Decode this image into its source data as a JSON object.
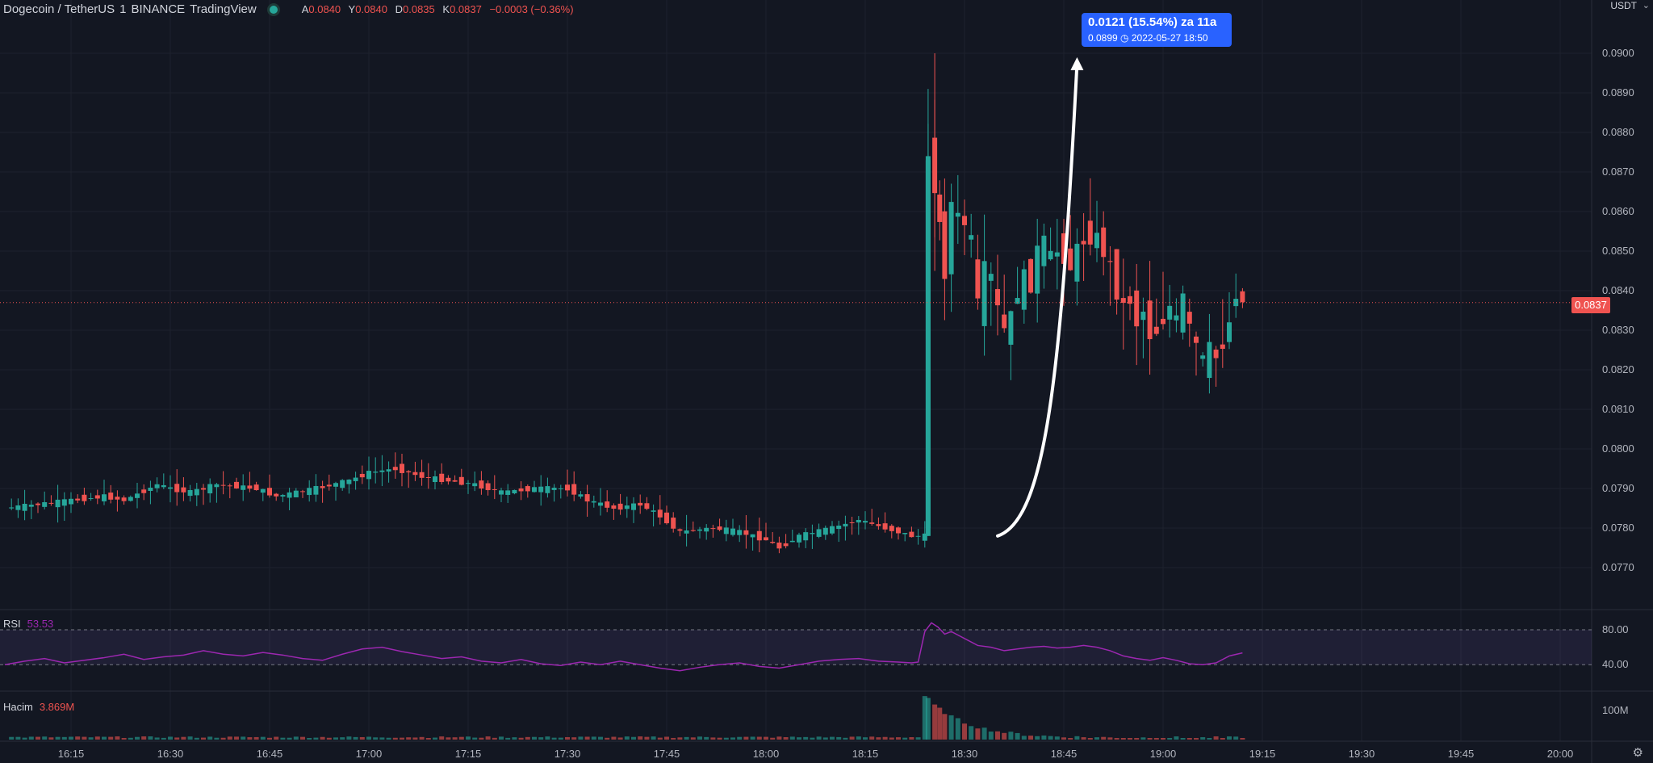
{
  "legend": {
    "symbol": "Dogecoin / TetherUS",
    "interval": "1",
    "exchange": "BINANCE",
    "source": "TradingView",
    "open_label": "A",
    "open": "0.0840",
    "high_label": "Y",
    "high": "0.0840",
    "low_label": "D",
    "low": "0.0835",
    "close_label": "K",
    "close": "0.0837",
    "change": "−0.0003 (−0.36%)"
  },
  "axis_unit": "USDT",
  "last_price": "0.0837",
  "measure": {
    "line1": "0.0121 (15.54%) za 11a",
    "line2": "0.0899 ◷ 2022-05-27  18:50"
  },
  "rsi": {
    "label": "RSI",
    "value": "53.53",
    "upper": "80.00",
    "lower": "40.00"
  },
  "volume": {
    "label": "Hacim",
    "value": "3.869M",
    "tick": "100M"
  },
  "colors": {
    "up": "#26a69a",
    "down": "#ef5350",
    "rsi": "#9c27b0",
    "bg": "#131722",
    "measure": "#2962ff"
  },
  "chart_data": {
    "type": "candlestick",
    "unit": "USDT",
    "price_ticks": [
      "0.0770",
      "0.0780",
      "0.0790",
      "0.0800",
      "0.0810",
      "0.0820",
      "0.0830",
      "0.0840",
      "0.0850",
      "0.0860",
      "0.0870",
      "0.0880",
      "0.0890",
      "0.0900"
    ],
    "time_ticks": [
      {
        "label": "16:15",
        "minute": 975
      },
      {
        "label": "16:30",
        "minute": 990
      },
      {
        "label": "16:45",
        "minute": 1005
      },
      {
        "label": "17:00",
        "minute": 1020
      },
      {
        "label": "17:15",
        "minute": 1035
      },
      {
        "label": "17:30",
        "minute": 1050
      },
      {
        "label": "17:45",
        "minute": 1065
      },
      {
        "label": "18:00",
        "minute": 1080
      },
      {
        "label": "18:15",
        "minute": 1095
      },
      {
        "label": "18:30",
        "minute": 1110
      },
      {
        "label": "18:45",
        "minute": 1125
      },
      {
        "label": "19:00",
        "minute": 1140
      },
      {
        "label": "19:15",
        "minute": 1155
      },
      {
        "label": "19:30",
        "minute": 1170
      },
      {
        "label": "19:45",
        "minute": 1185
      },
      {
        "label": "20:00",
        "minute": 1200
      }
    ],
    "close_path": [
      [
        965.0,
        0.0785
      ],
      [
        970.0,
        0.0786
      ],
      [
        975.0,
        0.0787
      ],
      [
        980.0,
        0.0788
      ],
      [
        983.0,
        0.0787
      ],
      [
        988.0,
        0.0791
      ],
      [
        990.0,
        0.079
      ],
      [
        993.0,
        0.0789
      ],
      [
        997.0,
        0.0791
      ],
      [
        1003.0,
        0.079
      ],
      [
        1006.0,
        0.0788
      ],
      [
        1012.0,
        0.079
      ],
      [
        1017.0,
        0.0792
      ],
      [
        1020.0,
        0.0794
      ],
      [
        1024.0,
        0.0795
      ],
      [
        1028.0,
        0.0793
      ],
      [
        1032.0,
        0.0792
      ],
      [
        1036.0,
        0.0791
      ],
      [
        1040.0,
        0.0789
      ],
      [
        1045.0,
        0.079
      ],
      [
        1050.0,
        0.079
      ],
      [
        1053.0,
        0.0787
      ],
      [
        1057.0,
        0.0785
      ],
      [
        1061.0,
        0.0786
      ],
      [
        1064.0,
        0.0783
      ],
      [
        1067.0,
        0.0779
      ],
      [
        1072.0,
        0.078
      ],
      [
        1076.0,
        0.0779
      ],
      [
        1080.0,
        0.0777
      ],
      [
        1082.0,
        0.0775
      ],
      [
        1085.0,
        0.0778
      ],
      [
        1090.0,
        0.078
      ],
      [
        1094.0,
        0.0782
      ],
      [
        1098.0,
        0.078
      ],
      [
        1102.0,
        0.0778
      ],
      [
        1104.0,
        0.0778
      ],
      [
        1104.5,
        0.0874
      ],
      [
        1105.5,
        0.0867
      ],
      [
        1107.0,
        0.0845
      ],
      [
        1108.0,
        0.0862
      ],
      [
        1109.0,
        0.0858
      ],
      [
        1110.0,
        0.0857
      ],
      [
        1111.0,
        0.0852
      ],
      [
        1112.0,
        0.0836
      ],
      [
        1113.0,
        0.0845
      ],
      [
        1114.0,
        0.0843
      ],
      [
        1115.0,
        0.0835
      ],
      [
        1116.0,
        0.083
      ],
      [
        1117.0,
        0.0833
      ],
      [
        1118.0,
        0.084
      ],
      [
        1119.0,
        0.0843
      ],
      [
        1120.0,
        0.0842
      ],
      [
        1121.0,
        0.085
      ],
      [
        1122.0,
        0.0852
      ],
      [
        1123.0,
        0.0848
      ],
      [
        1124.0,
        0.085
      ],
      [
        1125.0,
        0.0849
      ],
      [
        1126.0,
        0.0846
      ],
      [
        1127.0,
        0.085
      ],
      [
        1128.0,
        0.0853
      ],
      [
        1129.0,
        0.0854
      ],
      [
        1130.0,
        0.0853
      ],
      [
        1131.0,
        0.085
      ],
      [
        1132.0,
        0.0846
      ],
      [
        1133.0,
        0.084
      ],
      [
        1134.0,
        0.0836
      ],
      [
        1135.0,
        0.0838
      ],
      [
        1136.0,
        0.0832
      ],
      [
        1137.0,
        0.0835
      ],
      [
        1138.0,
        0.0829
      ],
      [
        1139.0,
        0.083
      ],
      [
        1140.0,
        0.0833
      ],
      [
        1141.0,
        0.0836
      ],
      [
        1142.0,
        0.0832
      ],
      [
        1143.0,
        0.0838
      ],
      [
        1144.0,
        0.083
      ],
      [
        1145.0,
        0.0826
      ],
      [
        1146.0,
        0.0822
      ],
      [
        1147.0,
        0.0825
      ],
      [
        1148.0,
        0.0823
      ],
      [
        1149.0,
        0.0827
      ],
      [
        1150.0,
        0.0832
      ],
      [
        1151.0,
        0.084
      ],
      [
        1152.0,
        0.0837
      ]
    ],
    "high_extremes": [
      {
        "minute": 1105,
        "value": 0.09
      },
      {
        "minute": 1104.5,
        "value": 0.0891
      }
    ],
    "low_extremes": [
      {
        "minute": 1081,
        "value": 0.0774
      },
      {
        "minute": 1147,
        "value": 0.0816
      }
    ],
    "measure_from": {
      "minute": 1115,
      "value": 0.0778
    },
    "measure_to": {
      "minute": 1127,
      "value": 0.0899
    },
    "rsi_range": [
      20,
      100
    ],
    "rsi_series": [
      [
        965,
        40
      ],
      [
        968,
        44
      ],
      [
        971,
        47
      ],
      [
        974,
        42
      ],
      [
        977,
        45
      ],
      [
        980,
        48
      ],
      [
        983,
        52
      ],
      [
        986,
        46
      ],
      [
        989,
        49
      ],
      [
        992,
        51
      ],
      [
        995,
        56
      ],
      [
        998,
        52
      ],
      [
        1001,
        50
      ],
      [
        1004,
        54
      ],
      [
        1007,
        51
      ],
      [
        1010,
        47
      ],
      [
        1013,
        45
      ],
      [
        1016,
        52
      ],
      [
        1019,
        58
      ],
      [
        1022,
        60
      ],
      [
        1025,
        55
      ],
      [
        1028,
        51
      ],
      [
        1031,
        47
      ],
      [
        1034,
        49
      ],
      [
        1037,
        44
      ],
      [
        1040,
        42
      ],
      [
        1043,
        46
      ],
      [
        1046,
        41
      ],
      [
        1049,
        39
      ],
      [
        1052,
        43
      ],
      [
        1055,
        40
      ],
      [
        1058,
        44
      ],
      [
        1061,
        40
      ],
      [
        1064,
        36
      ],
      [
        1067,
        33
      ],
      [
        1070,
        37
      ],
      [
        1073,
        40
      ],
      [
        1076,
        42
      ],
      [
        1079,
        38
      ],
      [
        1082,
        36
      ],
      [
        1085,
        40
      ],
      [
        1088,
        44
      ],
      [
        1091,
        46
      ],
      [
        1094,
        47
      ],
      [
        1097,
        44
      ],
      [
        1100,
        43
      ],
      [
        1102,
        42
      ],
      [
        1103,
        43
      ],
      [
        1104,
        78
      ],
      [
        1105,
        88
      ],
      [
        1106,
        83
      ],
      [
        1107,
        75
      ],
      [
        1108,
        78
      ],
      [
        1109,
        74
      ],
      [
        1110,
        70
      ],
      [
        1112,
        62
      ],
      [
        1114,
        60
      ],
      [
        1116,
        56
      ],
      [
        1118,
        58
      ],
      [
        1120,
        60
      ],
      [
        1122,
        61
      ],
      [
        1124,
        59
      ],
      [
        1126,
        60
      ],
      [
        1128,
        62
      ],
      [
        1130,
        60
      ],
      [
        1132,
        56
      ],
      [
        1134,
        50
      ],
      [
        1136,
        47
      ],
      [
        1138,
        45
      ],
      [
        1140,
        48
      ],
      [
        1142,
        45
      ],
      [
        1144,
        41
      ],
      [
        1146,
        40
      ],
      [
        1148,
        42
      ],
      [
        1150,
        50
      ],
      [
        1152,
        53.53
      ]
    ],
    "volume_ticks": [
      "100M"
    ],
    "volume_note": "spike at 18:29 then decaying"
  }
}
